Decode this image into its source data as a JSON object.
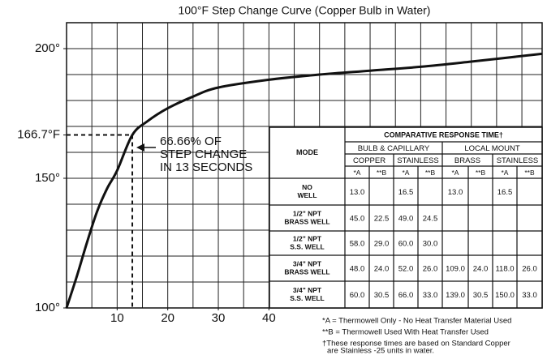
{
  "chart_data": {
    "type": "line",
    "title": "100°F Step Change Curve (Copper Bulb in Water)",
    "x": [
      0,
      2,
      4,
      6,
      8,
      10,
      13,
      16,
      20,
      25,
      30,
      40,
      50,
      60,
      70,
      80,
      94
    ],
    "series": [
      {
        "color": "#111111",
        "values": [
          100,
          112,
          125,
          137,
          146,
          153,
          166.7,
          172,
          177,
          181.5,
          185,
          188,
          190,
          191.5,
          193,
          195,
          198
        ]
      }
    ],
    "xlim": [
      0,
      94
    ],
    "ylim": [
      100,
      210
    ],
    "xticks": [
      10,
      20,
      30,
      40
    ],
    "yticks": [
      {
        "value": 100,
        "label": "100°"
      },
      {
        "value": 150,
        "label": "150°"
      },
      {
        "value": 166.7,
        "label": "166.7°F"
      },
      {
        "value": 200,
        "label": "200°"
      }
    ],
    "grid": true,
    "xgrid": [
      5,
      10,
      15,
      20,
      25,
      30,
      35,
      40,
      45,
      50,
      55,
      60,
      65,
      70,
      75,
      80,
      85,
      90
    ],
    "ygrid": [
      110,
      120,
      130,
      140,
      150,
      160,
      170,
      180,
      190,
      200
    ],
    "marker": {
      "x": 13,
      "y": 166.7
    },
    "annotation": [
      "66.66% OF",
      "STEP CHANGE",
      "IN 13 SECONDS"
    ]
  },
  "table": {
    "title": "COMPARATIVE RESPONSE TIME†",
    "mode_header": "MODE",
    "groups": [
      "BULB & CAPILLARY",
      "LOCAL MOUNT"
    ],
    "materials": [
      "COPPER",
      "STAINLESS",
      "BRASS",
      "STAINLESS"
    ],
    "subcols": [
      "*A",
      "**B",
      "*A",
      "**B",
      "*A",
      "**B",
      "*A",
      "**B"
    ],
    "rows": [
      {
        "mode": [
          "NO",
          "WELL"
        ],
        "values": [
          "13.0",
          null,
          "16.5",
          null,
          "13.0",
          null,
          "16.5",
          null
        ]
      },
      {
        "mode": [
          "1/2\" NPT",
          "BRASS WELL"
        ],
        "values": [
          "45.0",
          "22.5",
          "49.0",
          "24.5",
          null,
          null,
          null,
          null
        ]
      },
      {
        "mode": [
          "1/2\" NPT",
          "S.S. WELL"
        ],
        "values": [
          "58.0",
          "29.0",
          "60.0",
          "30.0",
          null,
          null,
          null,
          null
        ]
      },
      {
        "mode": [
          "3/4\" NPT",
          "BRASS WELL"
        ],
        "values": [
          "48.0",
          "24.0",
          "52.0",
          "26.0",
          "109.0",
          "24.0",
          "118.0",
          "26.0"
        ]
      },
      {
        "mode": [
          "3/4\" NPT",
          "S.S. WELL"
        ],
        "values": [
          "60.0",
          "30.5",
          "66.0",
          "33.0",
          "139.0",
          "30.5",
          "150.0",
          "33.0"
        ]
      }
    ]
  },
  "footnotes": [
    "*A = Thermowell Only - No Heat Transfer Material Used",
    "**B = Thermowell Used With Heat Transfer Used",
    "†These response times are based on Standard Copper",
    "are Stainless -25 units in water."
  ]
}
